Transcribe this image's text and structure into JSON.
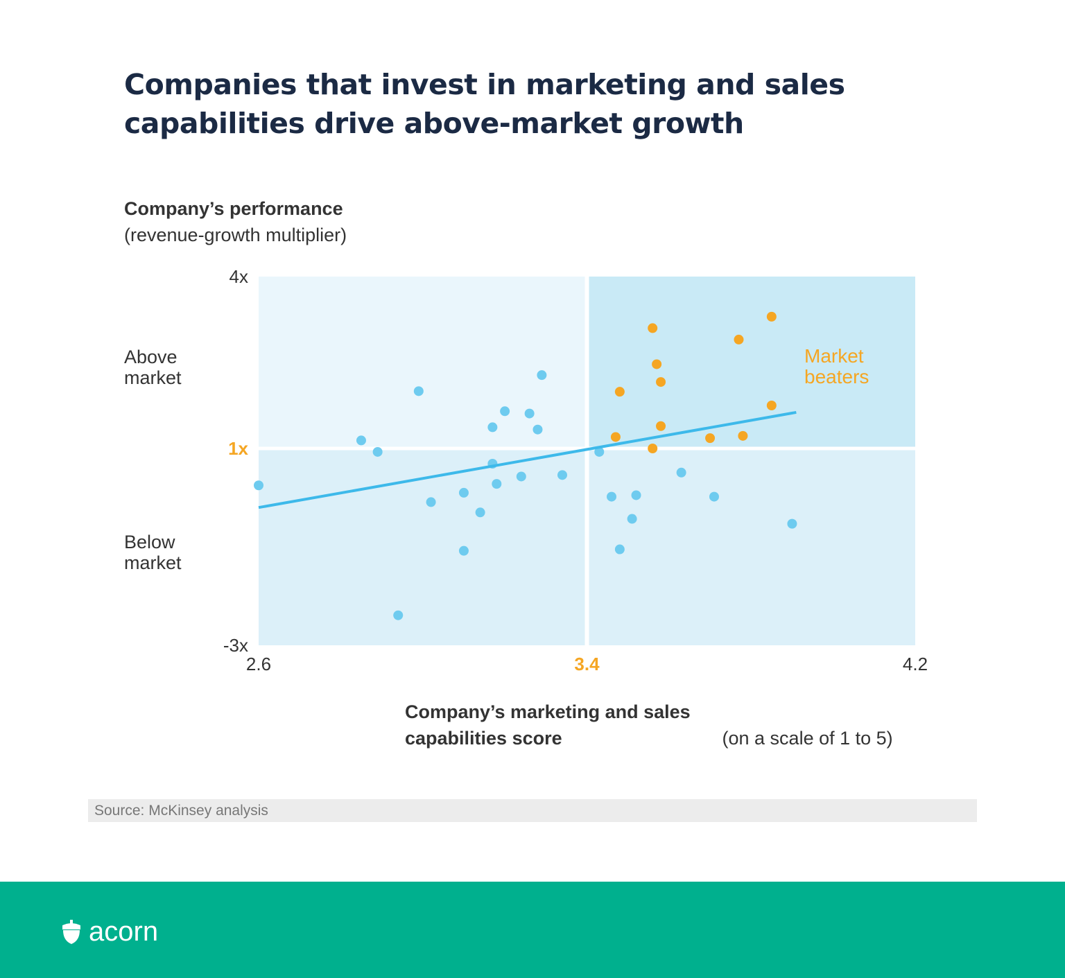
{
  "title": "Companies that invest in marketing and sales capabilities drive above-market growth",
  "source": "Source: McKinsey analysis",
  "brand": {
    "name": "acorn",
    "color": "#00b08e"
  },
  "colors": {
    "below_market_point": "#6ecbef",
    "market_beater_point": "#f5a623",
    "trend_line": "#3db9ea",
    "highlight": "#f5a623"
  },
  "chart_data": {
    "type": "scatter",
    "title": "Companies that invest in marketing and sales capabilities drive above-market growth",
    "ylabel_bold": "Company’s performance",
    "ylabel_sub": "(revenue-growth multiplier)",
    "xlabel_bold": "Company’s marketing and sales capabilities score",
    "xlabel_sub": "(on a scale of 1 to 5)",
    "xlim": [
      2.6,
      4.2
    ],
    "ylim": [
      -3,
      4
    ],
    "x_ticks": [
      "2.6",
      "3.4",
      "4.2"
    ],
    "y_ticks": [
      "4x",
      "1x",
      "-3x"
    ],
    "highlight_x": 3.4,
    "highlight_y": 1,
    "y_region_labels": {
      "above": "Above market",
      "below": "Below market"
    },
    "annotation": "Market beaters",
    "grid": false,
    "series": [
      {
        "color": "#6ecbef",
        "points": [
          [
            2.6,
            0.25
          ],
          [
            2.85,
            1.14
          ],
          [
            2.89,
            0.93
          ],
          [
            2.99,
            2.0
          ],
          [
            2.94,
            -2.39
          ],
          [
            3.02,
            -0.09
          ],
          [
            3.1,
            0.1
          ],
          [
            3.1,
            -1.08
          ],
          [
            3.14,
            -0.3
          ],
          [
            3.17,
            1.37
          ],
          [
            3.2,
            1.65
          ],
          [
            3.17,
            0.69
          ],
          [
            3.18,
            0.28
          ],
          [
            3.24,
            0.43
          ],
          [
            3.26,
            1.61
          ],
          [
            3.28,
            1.33
          ],
          [
            3.29,
            2.28
          ],
          [
            3.34,
            0.46
          ],
          [
            3.43,
            0.93
          ],
          [
            3.46,
            0.02
          ],
          [
            3.52,
            0.05
          ],
          [
            3.51,
            -0.43
          ],
          [
            3.48,
            -1.05
          ],
          [
            3.63,
            0.51
          ],
          [
            3.71,
            0.02
          ],
          [
            3.9,
            -0.53
          ]
        ]
      },
      {
        "name": "Market beaters",
        "color": "#f5a623",
        "points": [
          [
            3.56,
            3.1
          ],
          [
            3.57,
            2.47
          ],
          [
            3.58,
            2.16
          ],
          [
            3.48,
            1.99
          ],
          [
            3.58,
            1.39
          ],
          [
            3.47,
            1.2
          ],
          [
            3.56,
            1.0
          ],
          [
            3.7,
            1.18
          ],
          [
            3.78,
            1.22
          ],
          [
            3.77,
            2.9
          ],
          [
            3.85,
            3.3
          ],
          [
            3.85,
            1.75
          ]
        ]
      }
    ],
    "trend_line": [
      [
        2.6,
        -0.2
      ],
      [
        3.91,
        1.63
      ]
    ]
  }
}
